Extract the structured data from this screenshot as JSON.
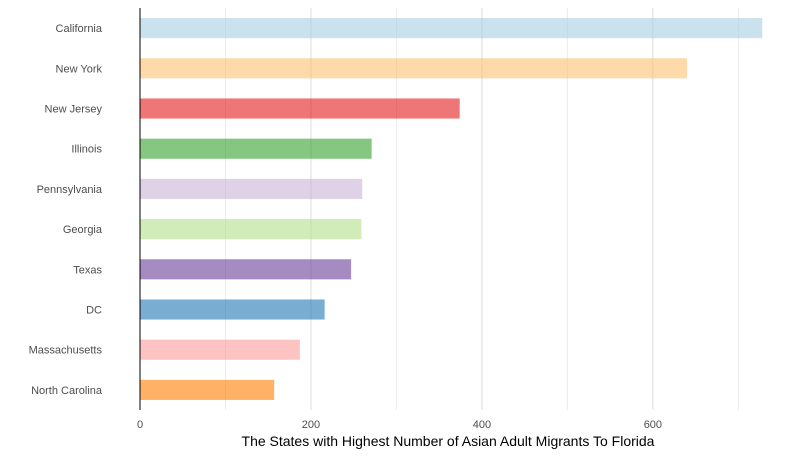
{
  "chart_data": {
    "type": "bar",
    "orientation": "horizontal",
    "title": "",
    "xlabel": "The States with Highest Number of Asian Adult Migrants To Florida",
    "ylabel": "",
    "xlim": [
      0,
      730
    ],
    "x_ticks": [
      0,
      200,
      400,
      600
    ],
    "grid": true,
    "legend": "none",
    "categories": [
      "California",
      "New York",
      "New Jersey",
      "Illinois",
      "Pennsylvania",
      "Georgia",
      "Texas",
      "DC",
      "Massachusetts",
      "North Carolina"
    ],
    "values": [
      728,
      640,
      374,
      271,
      260,
      259,
      247,
      216,
      187,
      157
    ],
    "colors": [
      "#a6cee3",
      "#fdbf6f",
      "#e31a1c",
      "#33a02c",
      "#cab2d6",
      "#b2df8a",
      "#6a3d9a",
      "#1f78b4",
      "#fb9a99",
      "#ff7f00"
    ],
    "bar_opacity": 0.6
  }
}
